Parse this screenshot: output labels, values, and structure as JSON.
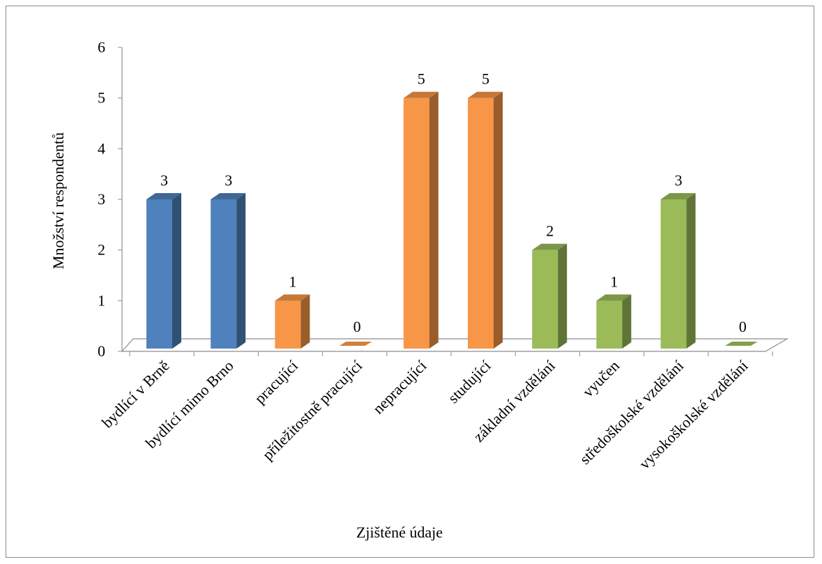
{
  "chart_data": {
    "type": "bar",
    "title": "",
    "xlabel": "Zjištěné údaje",
    "ylabel": "Množství respondentů",
    "ylim": [
      0,
      6
    ],
    "yticks": [
      0,
      1,
      2,
      3,
      4,
      5,
      6
    ],
    "grid": false,
    "legend": "none",
    "categories": [
      "bydlící v Brně",
      "bydlící mimo Brno",
      "pracující",
      "příležitostně pracující",
      "nepracující",
      "studující",
      "základní vzdělání",
      "vyučen",
      "středoškolské vzdělání",
      "vysokoškolské vzdělání"
    ],
    "values": [
      3,
      3,
      1,
      0,
      5,
      5,
      2,
      1,
      3,
      0
    ],
    "data_labels": [
      "3",
      "3",
      "1",
      "0",
      "5",
      "5",
      "2",
      "1",
      "3",
      "0"
    ],
    "bar_colors": [
      "#4f81bd",
      "#4f81bd",
      "#f79646",
      "#f79646",
      "#f79646",
      "#f79646",
      "#9bbb59",
      "#9bbb59",
      "#9bbb59",
      "#9bbb59"
    ]
  }
}
